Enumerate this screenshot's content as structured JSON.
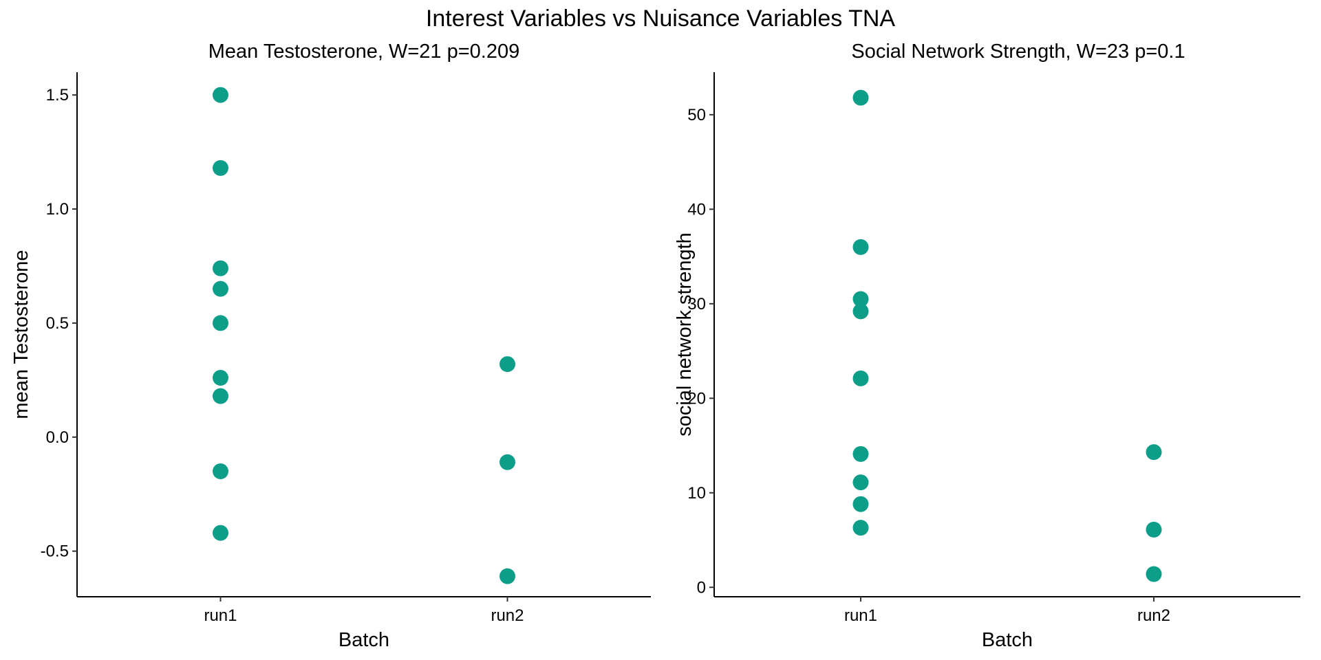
{
  "figure": {
    "title": "Interest Variables vs Nuisance Variables TNA",
    "point_color": "#0d9e8a"
  },
  "chart_data": [
    {
      "type": "scatter",
      "title": "Mean Testosterone, W=21 p=0.209",
      "xlabel": "Batch",
      "ylabel": "mean Testosterone",
      "categories": [
        "run1",
        "run2"
      ],
      "ylim": [
        -0.7,
        1.6
      ],
      "yticks": [
        -0.5,
        0.0,
        0.5,
        1.0,
        1.5
      ],
      "ytick_labels": [
        "-0.5",
        "0.0",
        "0.5",
        "1.0",
        "1.5"
      ],
      "grid": false,
      "points": [
        {
          "x": "run1",
          "y": 1.5
        },
        {
          "x": "run1",
          "y": 1.18
        },
        {
          "x": "run1",
          "y": 0.74
        },
        {
          "x": "run1",
          "y": 0.65
        },
        {
          "x": "run1",
          "y": 0.5
        },
        {
          "x": "run1",
          "y": 0.26
        },
        {
          "x": "run1",
          "y": 0.18
        },
        {
          "x": "run1",
          "y": -0.15
        },
        {
          "x": "run1",
          "y": -0.42
        },
        {
          "x": "run2",
          "y": 0.32
        },
        {
          "x": "run2",
          "y": -0.11
        },
        {
          "x": "run2",
          "y": -0.61
        }
      ]
    },
    {
      "type": "scatter",
      "title": "Social Network Strength, W=23 p=0.1",
      "xlabel": "Batch",
      "ylabel": "social network strength",
      "categories": [
        "run1",
        "run2"
      ],
      "ylim": [
        -1,
        54.5
      ],
      "yticks": [
        0,
        10,
        20,
        30,
        40,
        50
      ],
      "ytick_labels": [
        "0",
        "10",
        "20",
        "30",
        "40",
        "50"
      ],
      "grid": false,
      "points": [
        {
          "x": "run1",
          "y": 51.8
        },
        {
          "x": "run1",
          "y": 36.0
        },
        {
          "x": "run1",
          "y": 30.5
        },
        {
          "x": "run1",
          "y": 29.2
        },
        {
          "x": "run1",
          "y": 22.1
        },
        {
          "x": "run1",
          "y": 14.1
        },
        {
          "x": "run1",
          "y": 11.1
        },
        {
          "x": "run1",
          "y": 8.8
        },
        {
          "x": "run1",
          "y": 6.3
        },
        {
          "x": "run2",
          "y": 14.3
        },
        {
          "x": "run2",
          "y": 6.1
        },
        {
          "x": "run2",
          "y": 1.4
        }
      ]
    }
  ]
}
